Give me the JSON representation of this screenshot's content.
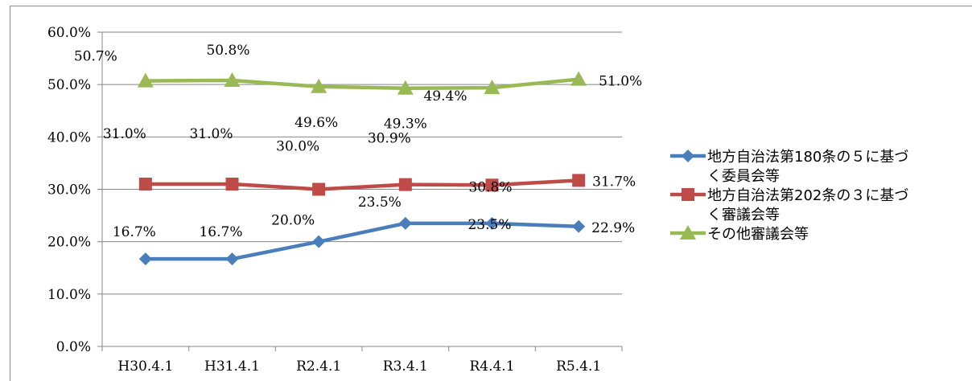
{
  "chart_data": {
    "type": "line",
    "title": "",
    "xlabel": "",
    "ylabel": "",
    "categories": [
      "H30.4.1",
      "H31.4.1",
      "R2.4.1",
      "R3.4.1",
      "R4.4.1",
      "R5.4.1"
    ],
    "y_tick_labels": [
      "0.0%",
      "10.0%",
      "20.0%",
      "30.0%",
      "40.0%",
      "50.0%",
      "60.0%"
    ],
    "ylim": [
      0,
      60
    ],
    "grid": true,
    "legend_position": "right",
    "series": [
      {
        "name": "地方自治法第180条の５に基づく委員会等",
        "legend_lines": [
          "地方自治法第180条の５に基づ",
          "く委員会等"
        ],
        "values": [
          16.7,
          16.7,
          20.0,
          23.5,
          23.5,
          22.9
        ],
        "labels": [
          "16.7%",
          "16.7%",
          "20.0%",
          "23.5%",
          "23.5%",
          "22.9%"
        ],
        "color": "#4a7ebb",
        "marker": "diamond"
      },
      {
        "name": "地方自治法第202条の３に基づく審議会等",
        "legend_lines": [
          "地方自治法第202条の３に基づ",
          "く審議会等"
        ],
        "values": [
          31.0,
          31.0,
          30.0,
          30.9,
          30.8,
          31.7
        ],
        "labels": [
          "31.0%",
          "31.0%",
          "30.0%",
          "30.9%",
          "30.8%",
          "31.7%"
        ],
        "color": "#be4b48",
        "marker": "square"
      },
      {
        "name": "その他審議会等",
        "legend_lines": [
          "その他審議会等"
        ],
        "values": [
          50.7,
          50.8,
          49.6,
          49.3,
          49.4,
          51.0
        ],
        "labels": [
          "50.7%",
          "50.8%",
          "49.6%",
          "49.3%",
          "49.4%",
          "51.0%"
        ],
        "color": "#98b954",
        "marker": "triangle"
      }
    ]
  }
}
